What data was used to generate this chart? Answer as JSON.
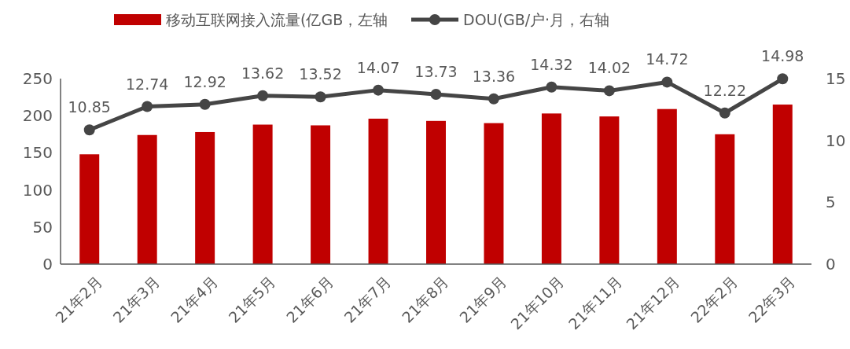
{
  "chart_data": {
    "type": "bar",
    "categories": [
      "21年2月",
      "21年3月",
      "21年4月",
      "21年5月",
      "21年6月",
      "21年7月",
      "21年8月",
      "21年9月",
      "21年10月",
      "21年11月",
      "21年12月",
      "22年2月",
      "22年3月"
    ],
    "series": [
      {
        "name": "移动互联网接入流量(亿GB，左轴",
        "color": "#c00000",
        "values": [
          148,
          174,
          178,
          188,
          187,
          196,
          193,
          190,
          203,
          199,
          209,
          175,
          215
        ]
      },
      {
        "name": "DOU(GB/户·月，右轴",
        "type": "line",
        "axis": "y2",
        "color": "#454545",
        "marker": "circle",
        "values": [
          10.85,
          12.74,
          12.92,
          13.62,
          13.52,
          14.07,
          13.73,
          13.36,
          14.32,
          14.02,
          14.72,
          12.22,
          14.98
        ],
        "value_labels": [
          "10.85",
          "12.74",
          "12.92",
          "13.62",
          "13.52",
          "14.07",
          "13.73",
          "13.36",
          "14.32",
          "14.02",
          "14.72",
          "12.22",
          "14.98"
        ]
      }
    ],
    "ylim": [
      0,
      250
    ],
    "yticks": [
      0,
      50,
      100,
      150,
      200,
      250
    ],
    "y2lim": [
      0,
      15
    ],
    "y2ticks": [
      0,
      5,
      10,
      15
    ],
    "grid": false,
    "legend": "top"
  }
}
